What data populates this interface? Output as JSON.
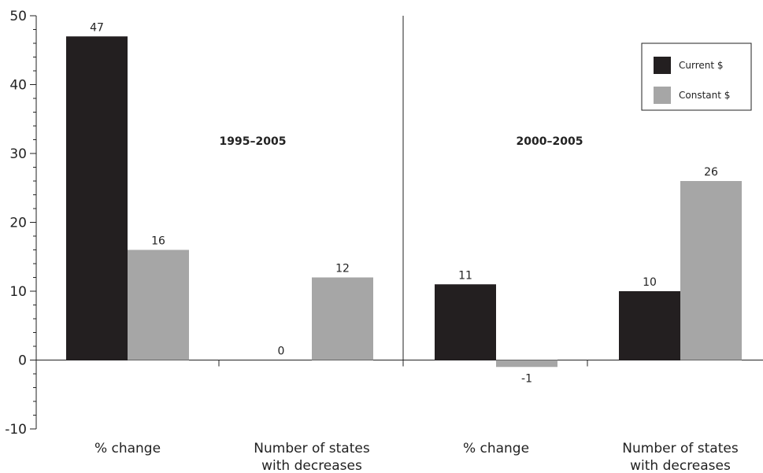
{
  "chart_data": {
    "type": "bar",
    "ylim": [
      -10,
      50
    ],
    "yticks": [
      "-10",
      "0",
      "10",
      "20",
      "30",
      "40",
      "50"
    ],
    "grid": false,
    "legend_position": "top-right",
    "series": [
      {
        "name": "Current $",
        "color": "#231f20"
      },
      {
        "name": "Constant $",
        "color": "#a6a6a6"
      }
    ],
    "groups": [
      {
        "period": "1995–2005",
        "categories": [
          {
            "label_lines": [
              "% change"
            ],
            "values": [
              47,
              16
            ]
          },
          {
            "label_lines": [
              "Number of states",
              "with decreases"
            ],
            "values": [
              0,
              12
            ]
          }
        ]
      },
      {
        "period": "2000–2005",
        "categories": [
          {
            "label_lines": [
              "% change"
            ],
            "values": [
              11,
              -1
            ]
          },
          {
            "label_lines": [
              "Number of states",
              "with decreases"
            ],
            "values": [
              10,
              26
            ]
          }
        ]
      }
    ]
  }
}
